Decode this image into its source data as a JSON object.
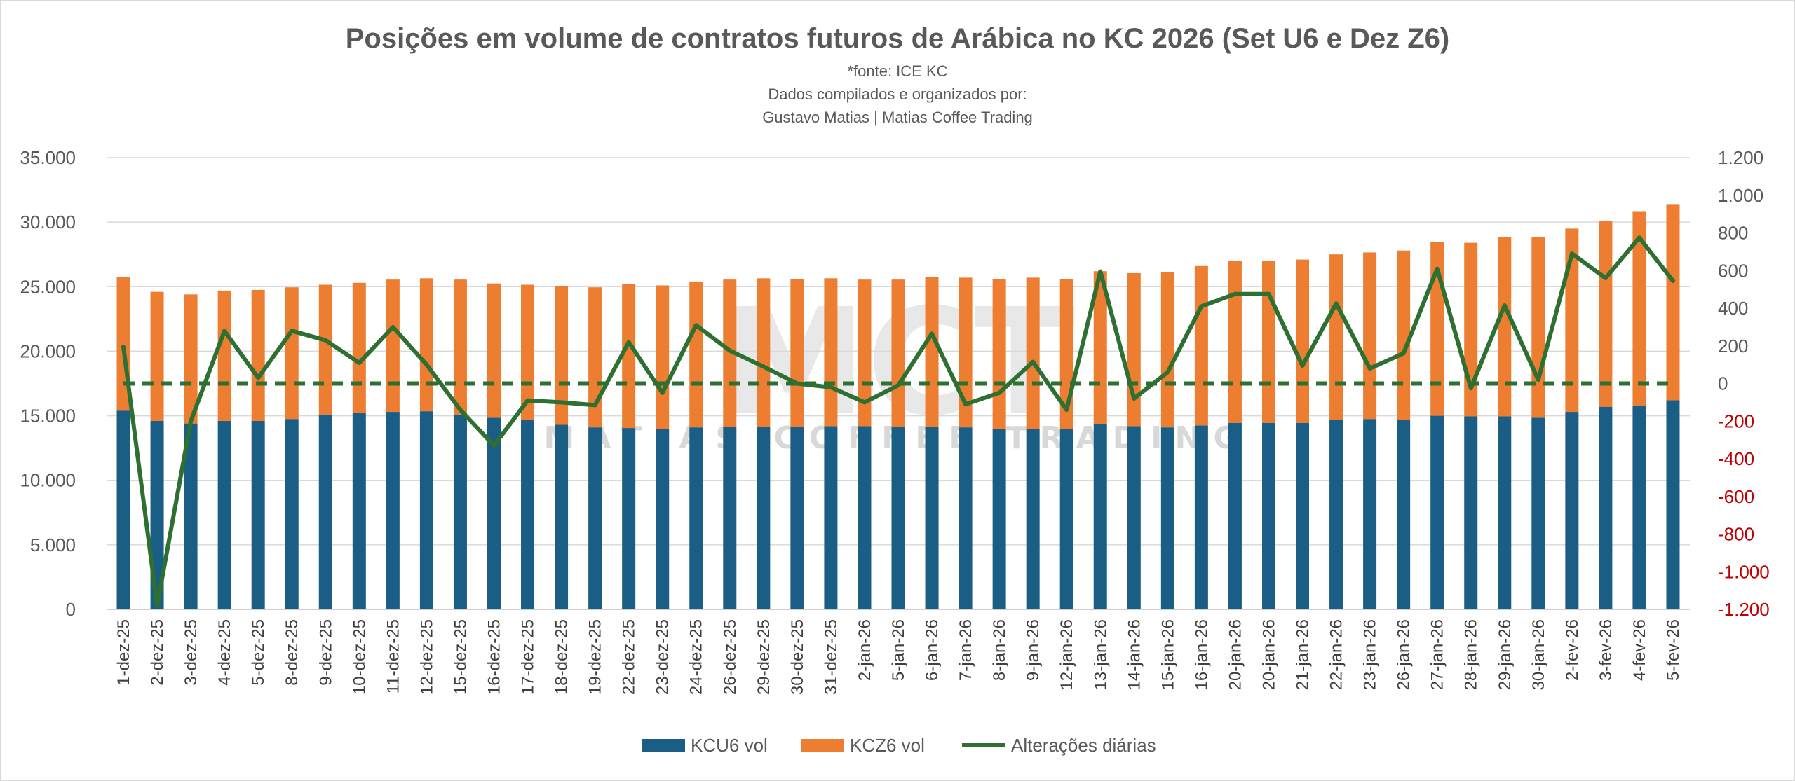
{
  "chart_data": {
    "type": "bar",
    "stacked": true,
    "title": "Posições em volume de contratos futuros de Arábica no KC 2026 (Set U6 e Dez Z6)",
    "subtitle_lines": [
      "*fonte: ICE KC",
      "Dados compilados e organizados por:",
      "Gustavo Matias | Matias Coffee Trading"
    ],
    "watermark": {
      "logo": "MCT",
      "text": "MATIAS COFFEE TRADING"
    },
    "categories": [
      "1-dez-25",
      "2-dez-25",
      "3-dez-25",
      "4-dez-25",
      "5-dez-25",
      "8-dez-25",
      "9-dez-25",
      "10-dez-25",
      "11-dez-25",
      "12-dez-25",
      "15-dez-25",
      "16-dez-25",
      "17-dez-25",
      "18-dez-25",
      "19-dez-25",
      "22-dez-25",
      "23-dez-25",
      "24-dez-25",
      "26-dez-25",
      "29-dez-25",
      "30-dez-25",
      "31-dez-25",
      "2-jan-26",
      "5-jan-26",
      "6-jan-26",
      "7-jan-26",
      "8-jan-26",
      "9-jan-26",
      "12-jan-26",
      "13-jan-26",
      "14-jan-26",
      "15-jan-26",
      "16-jan-26",
      "20-jan-26",
      "20-jan-26",
      "21-jan-26",
      "22-jan-26",
      "23-jan-26",
      "26-jan-26",
      "27-jan-26",
      "28-jan-26",
      "29-jan-26",
      "30-jan-26",
      "2-fev-26",
      "3-fev-26",
      "4-fev-26",
      "5-fev-26"
    ],
    "series": [
      {
        "name": "KCU6 vol",
        "type": "bar",
        "axis": "left",
        "color": "#1a5e86",
        "values": [
          15400,
          14600,
          14400,
          14600,
          14600,
          14750,
          15100,
          15200,
          15300,
          15350,
          15100,
          14850,
          14700,
          14300,
          14100,
          14050,
          13950,
          14100,
          14150,
          14150,
          14150,
          14200,
          14200,
          14150,
          14150,
          14100,
          14000,
          14000,
          13950,
          14350,
          14200,
          14100,
          14250,
          14450,
          14450,
          14450,
          14700,
          14750,
          14700,
          15000,
          14950,
          14950,
          14850,
          15300,
          15700,
          15750,
          16200
        ]
      },
      {
        "name": "KCZ6 vol",
        "type": "bar",
        "axis": "left",
        "color": "#ed7d31",
        "values": [
          10350,
          10000,
          10000,
          10100,
          10150,
          10200,
          10050,
          10100,
          10250,
          10300,
          10450,
          10400,
          10450,
          10750,
          10850,
          11150,
          11150,
          11300,
          11400,
          11500,
          11450,
          11450,
          11350,
          11400,
          11600,
          11600,
          11600,
          11700,
          11650,
          11850,
          11850,
          12050,
          12350,
          12550,
          12550,
          12650,
          12800,
          12900,
          13100,
          13450,
          13450,
          13900,
          14000,
          14200,
          14400,
          15100,
          15200
        ]
      },
      {
        "name": "Alterações diárias",
        "type": "line",
        "axis": "right",
        "color": "#2e7032",
        "values": [
          195,
          -1180,
          -200,
          280,
          30,
          280,
          230,
          110,
          300,
          100,
          -140,
          -330,
          -90,
          -100,
          -115,
          220,
          -50,
          310,
          175,
          90,
          0,
          -20,
          -100,
          -10,
          265,
          -110,
          -50,
          115,
          -140,
          595,
          -80,
          60,
          410,
          475,
          475,
          95,
          425,
          80,
          160,
          610,
          -25,
          415,
          20,
          690,
          560,
          775,
          545
        ]
      }
    ],
    "zero_reference_line": {
      "axis": "right",
      "value": 0,
      "style": "dashed",
      "color": "#2e7032"
    },
    "y_left": {
      "ylim": [
        0,
        35000
      ],
      "ticks": [
        "0",
        "5.000",
        "10.000",
        "15.000",
        "20.000",
        "25.000",
        "30.000",
        "35.000"
      ]
    },
    "y_right": {
      "ylim": [
        -1200,
        1200
      ],
      "ticks": [
        "-1.200",
        "-1.000",
        "-800",
        "-600",
        "-400",
        "-200",
        "0",
        "200",
        "400",
        "600",
        "800",
        "1.000",
        "1.200"
      ]
    },
    "legend": {
      "position": "bottom-center"
    },
    "grid": true
  }
}
